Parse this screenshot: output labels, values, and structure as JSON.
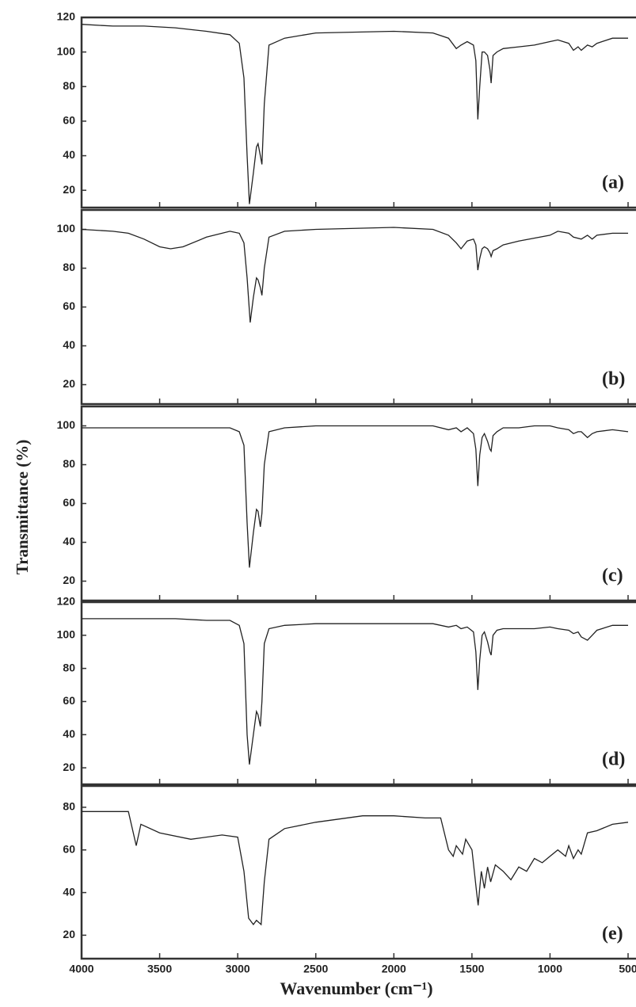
{
  "chart_data": [
    {
      "type": "line",
      "annotation": "(a)",
      "xlim": [
        4000,
        500
      ],
      "xticks": [
        4000,
        3500,
        3000,
        2500,
        2000,
        1500,
        1000,
        500
      ],
      "ylim": [
        10,
        120
      ],
      "yticks": [
        20,
        40,
        60,
        80,
        100,
        120
      ],
      "color": "#222222",
      "x": [
        4000,
        3800,
        3600,
        3400,
        3200,
        3050,
        2990,
        2960,
        2940,
        2925,
        2900,
        2880,
        2870,
        2855,
        2845,
        2830,
        2800,
        2700,
        2500,
        2000,
        1750,
        1650,
        1600,
        1570,
        1530,
        1490,
        1475,
        1462,
        1450,
        1435,
        1420,
        1400,
        1385,
        1377,
        1365,
        1340,
        1300,
        1200,
        1100,
        1000,
        950,
        880,
        850,
        820,
        800,
        760,
        730,
        700,
        600,
        500
      ],
      "values": [
        116,
        115,
        115,
        114,
        112,
        110,
        105,
        85,
        40,
        12,
        30,
        45,
        47,
        40,
        35,
        70,
        104,
        108,
        111,
        112,
        111,
        108,
        102,
        104,
        106,
        104,
        95,
        61,
        80,
        100,
        100,
        98,
        90,
        82,
        98,
        100,
        102,
        103,
        104,
        106,
        107,
        105,
        101,
        103,
        101,
        104,
        103,
        105,
        108,
        108
      ]
    },
    {
      "type": "line",
      "annotation": "(b)",
      "xlim": [
        4000,
        500
      ],
      "xticks": [
        4000,
        3500,
        3000,
        2500,
        2000,
        1500,
        1000,
        500
      ],
      "ylim": [
        10,
        110
      ],
      "yticks": [
        20,
        40,
        60,
        80,
        100
      ],
      "color": "#222222",
      "x": [
        4000,
        3800,
        3700,
        3600,
        3500,
        3430,
        3350,
        3200,
        3050,
        2990,
        2960,
        2940,
        2920,
        2900,
        2880,
        2870,
        2855,
        2845,
        2830,
        2800,
        2700,
        2500,
        2000,
        1750,
        1650,
        1600,
        1570,
        1530,
        1490,
        1475,
        1462,
        1450,
        1435,
        1420,
        1400,
        1385,
        1377,
        1365,
        1340,
        1300,
        1200,
        1000,
        950,
        880,
        850,
        800,
        760,
        730,
        700,
        600,
        500
      ],
      "values": [
        100,
        99,
        98,
        95,
        91,
        90,
        91,
        96,
        99,
        98,
        93,
        75,
        52,
        65,
        75,
        74,
        70,
        66,
        80,
        96,
        99,
        100,
        101,
        100,
        97,
        93,
        90,
        94,
        95,
        92,
        79,
        85,
        90,
        91,
        90,
        88,
        86,
        89,
        90,
        92,
        94,
        97,
        99,
        98,
        96,
        95,
        97,
        95,
        97,
        98,
        98
      ]
    },
    {
      "type": "line",
      "annotation": "(c)",
      "ylabel": "Transmittance (%)",
      "xlim": [
        4000,
        500
      ],
      "xticks": [
        4000,
        3500,
        3000,
        2500,
        2000,
        1500,
        1000,
        500
      ],
      "ylim": [
        10,
        110
      ],
      "yticks": [
        20,
        40,
        60,
        80,
        100
      ],
      "color": "#222222",
      "x": [
        4000,
        3800,
        3600,
        3400,
        3200,
        3050,
        2990,
        2960,
        2940,
        2925,
        2900,
        2880,
        2870,
        2855,
        2845,
        2830,
        2800,
        2700,
        2500,
        2000,
        1750,
        1650,
        1600,
        1570,
        1530,
        1490,
        1475,
        1462,
        1450,
        1435,
        1420,
        1400,
        1385,
        1377,
        1365,
        1340,
        1300,
        1200,
        1100,
        1000,
        950,
        880,
        850,
        820,
        800,
        760,
        730,
        700,
        600,
        500
      ],
      "values": [
        99,
        99,
        99,
        99,
        99,
        99,
        97,
        90,
        50,
        27,
        45,
        57,
        56,
        48,
        55,
        80,
        97,
        99,
        100,
        100,
        100,
        98,
        99,
        97,
        99,
        96,
        88,
        69,
        85,
        94,
        96,
        92,
        88,
        87,
        95,
        97,
        99,
        99,
        100,
        100,
        99,
        98,
        96,
        97,
        97,
        94,
        96,
        97,
        98,
        97
      ]
    },
    {
      "type": "line",
      "annotation": "(d)",
      "xlim": [
        4000,
        500
      ],
      "xticks": [
        4000,
        3500,
        3000,
        2500,
        2000,
        1500,
        1000,
        500
      ],
      "ylim": [
        10,
        120
      ],
      "yticks": [
        20,
        40,
        60,
        80,
        100,
        120
      ],
      "color": "#222222",
      "x": [
        4000,
        3800,
        3600,
        3400,
        3200,
        3050,
        2990,
        2960,
        2940,
        2925,
        2900,
        2880,
        2870,
        2855,
        2845,
        2830,
        2800,
        2700,
        2500,
        2000,
        1750,
        1650,
        1600,
        1570,
        1530,
        1490,
        1475,
        1462,
        1450,
        1435,
        1420,
        1400,
        1385,
        1377,
        1365,
        1340,
        1300,
        1200,
        1100,
        1000,
        950,
        880,
        850,
        820,
        800,
        760,
        730,
        700,
        600,
        500
      ],
      "values": [
        110,
        110,
        110,
        110,
        109,
        109,
        106,
        95,
        40,
        22,
        40,
        54,
        52,
        45,
        60,
        95,
        104,
        106,
        107,
        107,
        107,
        105,
        106,
        104,
        105,
        102,
        90,
        67,
        85,
        100,
        102,
        96,
        90,
        88,
        100,
        103,
        104,
        104,
        104,
        105,
        104,
        103,
        101,
        102,
        99,
        97,
        100,
        103,
        106,
        106
      ]
    },
    {
      "type": "line",
      "annotation": "(e)",
      "xlabel": "Wavenumber (cm⁻¹)",
      "xlim": [
        4000,
        500
      ],
      "xticks": [
        4000,
        3500,
        3000,
        2500,
        2000,
        1500,
        1000,
        500
      ],
      "ylim": [
        9,
        90
      ],
      "yticks": [
        20,
        40,
        60,
        80
      ],
      "color": "#222222",
      "x": [
        4000,
        3700,
        3650,
        3620,
        3500,
        3300,
        3100,
        3000,
        2960,
        2930,
        2900,
        2880,
        2850,
        2830,
        2800,
        2700,
        2500,
        2200,
        2000,
        1800,
        1700,
        1650,
        1620,
        1600,
        1560,
        1540,
        1500,
        1470,
        1460,
        1440,
        1420,
        1400,
        1380,
        1350,
        1300,
        1250,
        1200,
        1150,
        1100,
        1050,
        1000,
        950,
        900,
        880,
        850,
        820,
        800,
        760,
        700,
        600,
        500
      ],
      "values": [
        78,
        78,
        62,
        72,
        68,
        65,
        67,
        66,
        50,
        28,
        25,
        27,
        25,
        45,
        65,
        70,
        73,
        76,
        76,
        75,
        75,
        60,
        57,
        62,
        58,
        65,
        60,
        40,
        34,
        50,
        42,
        52,
        45,
        53,
        50,
        46,
        52,
        50,
        56,
        54,
        57,
        60,
        57,
        62,
        56,
        60,
        58,
        68,
        69,
        72,
        73
      ]
    }
  ]
}
